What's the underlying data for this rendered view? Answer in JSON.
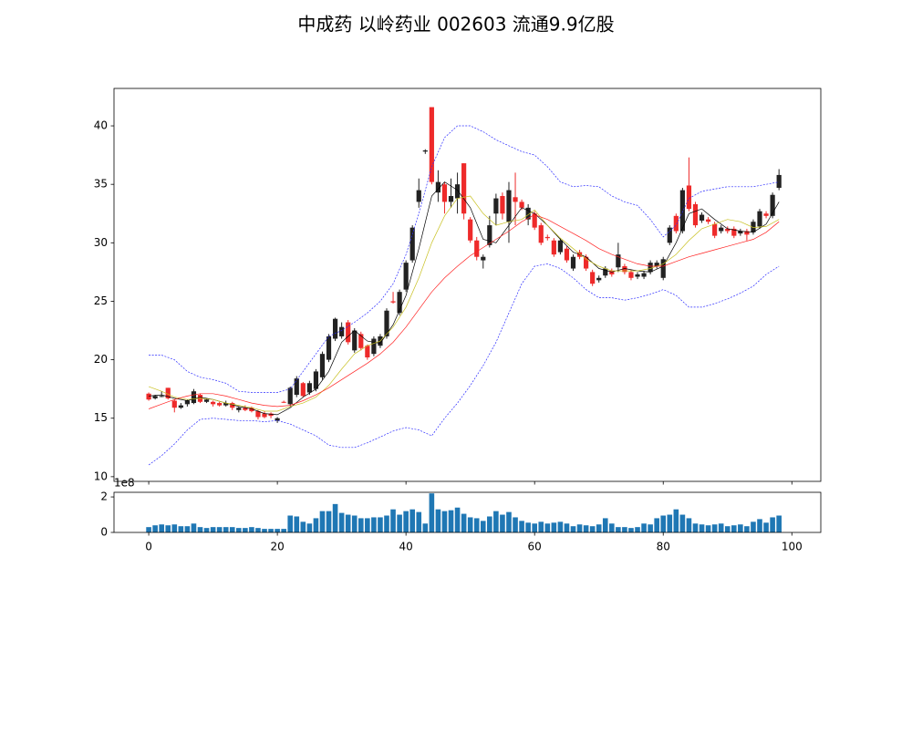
{
  "title": "中成药 以岭药业 002603 流通9.9亿股",
  "chart_data": [
    {
      "type": "candlestick",
      "up_color": "#222222",
      "down_color": "#ee2a2a",
      "open": [
        17.1,
        16.7,
        16.85,
        17.6,
        16.5,
        15.9,
        16.2,
        16.3,
        17.0,
        16.4,
        16.4,
        16.3,
        16.1,
        16.3,
        15.7,
        15.9,
        15.9,
        15.6,
        15.4,
        15.4,
        14.8,
        16.4,
        16.2,
        17.0,
        18.0,
        17.2,
        17.5,
        18.5,
        20.0,
        21.8,
        22.0,
        23.2,
        20.8,
        22.2,
        21.2,
        20.5,
        21.2,
        22.0,
        25.0,
        24.0,
        26.0,
        28.5,
        33.5,
        37.8,
        41.6,
        34.3,
        35.0,
        33.5,
        33.8,
        36.8,
        32.0,
        30.2,
        28.5,
        29.8,
        32.5,
        34.0,
        31.8,
        33.9,
        33.5,
        32.0,
        32.5,
        31.5,
        30.5,
        30.2,
        29.2,
        29.5,
        27.8,
        29.2,
        28.8,
        27.5,
        26.8,
        27.2,
        27.6,
        27.9,
        28.0,
        27.5,
        27.1,
        27.1,
        27.5,
        28.0,
        27.0,
        30.0,
        32.3,
        31.0,
        34.9,
        33.3,
        31.9,
        32.0,
        31.6,
        31.0,
        31.2,
        31.2,
        30.8,
        31.0,
        30.9,
        31.4,
        32.5,
        32.3,
        34.7
      ],
      "close": [
        16.6,
        16.9,
        16.9,
        16.7,
        15.9,
        16.1,
        16.5,
        17.3,
        16.4,
        16.6,
        16.2,
        16.1,
        16.3,
        15.9,
        15.9,
        15.7,
        15.6,
        15.1,
        15.1,
        15.2,
        15.0,
        16.35,
        17.6,
        18.4,
        16.9,
        18.0,
        19.0,
        20.5,
        22.0,
        23.5,
        22.8,
        21.5,
        22.5,
        21.0,
        20.2,
        21.8,
        22.0,
        24.2,
        24.9,
        25.8,
        28.3,
        31.3,
        34.5,
        37.9,
        35.2,
        35.2,
        33.5,
        34.0,
        35.0,
        32.5,
        30.2,
        28.8,
        28.8,
        31.5,
        33.8,
        32.5,
        34.5,
        33.5,
        33.0,
        33.0,
        31.3,
        30.0,
        30.4,
        29.0,
        30.2,
        28.5,
        28.8,
        28.8,
        27.8,
        26.5,
        27.0,
        27.8,
        27.3,
        29.0,
        27.5,
        27.0,
        27.3,
        27.4,
        28.3,
        28.3,
        28.6,
        31.3,
        31.0,
        34.5,
        32.9,
        31.5,
        32.4,
        31.8,
        30.6,
        31.3,
        31.0,
        30.6,
        31.0,
        30.7,
        31.8,
        32.7,
        32.3,
        34.1,
        35.8
      ],
      "high": [
        17.2,
        17.0,
        17.3,
        17.6,
        16.6,
        16.3,
        16.6,
        17.5,
        17.1,
        16.7,
        16.5,
        16.4,
        16.5,
        16.4,
        16.0,
        16.1,
        16.0,
        15.7,
        15.6,
        15.5,
        15.1,
        16.5,
        17.7,
        18.6,
        18.1,
        18.2,
        19.2,
        20.7,
        22.2,
        23.6,
        23.2,
        23.4,
        22.7,
        22.4,
        21.3,
        22.0,
        22.2,
        24.4,
        25.8,
        26.0,
        28.5,
        31.5,
        35.5,
        38.0,
        41.6,
        36.2,
        35.2,
        35.5,
        36.0,
        36.8,
        32.2,
        30.5,
        29.0,
        32.3,
        34.2,
        34.3,
        35.2,
        36.0,
        33.7,
        33.3,
        32.7,
        31.7,
        30.7,
        30.4,
        30.4,
        29.7,
        29.0,
        29.4,
        29.0,
        27.7,
        27.2,
        28.0,
        27.8,
        30.0,
        28.2,
        27.7,
        27.5,
        27.6,
        28.5,
        28.5,
        28.8,
        31.5,
        32.5,
        34.7,
        37.3,
        33.5,
        32.6,
        32.2,
        31.8,
        31.5,
        31.4,
        31.4,
        31.2,
        31.2,
        32.0,
        32.9,
        32.7,
        34.3,
        36.3
      ],
      "low": [
        16.5,
        16.6,
        16.8,
        16.6,
        15.5,
        15.8,
        16.0,
        16.2,
        16.3,
        16.3,
        16.0,
        16.0,
        16.0,
        15.7,
        15.5,
        15.6,
        15.5,
        14.9,
        15.0,
        15.0,
        14.6,
        16.3,
        16.0,
        16.8,
        16.8,
        17.0,
        17.3,
        18.3,
        19.8,
        21.6,
        21.8,
        21.3,
        20.6,
        20.8,
        20.0,
        20.3,
        21.0,
        21.8,
        24.8,
        23.8,
        25.8,
        28.3,
        33.0,
        37.6,
        35.0,
        33.5,
        32.5,
        33.0,
        32.5,
        32.0,
        30.0,
        28.5,
        27.8,
        29.6,
        31.5,
        32.0,
        30.0,
        31.5,
        32.8,
        31.5,
        31.1,
        29.8,
        30.2,
        28.8,
        29.0,
        28.3,
        27.6,
        28.6,
        27.6,
        26.3,
        26.6,
        27.0,
        27.1,
        27.5,
        27.3,
        26.8,
        26.9,
        26.9,
        27.3,
        27.8,
        26.8,
        29.8,
        30.8,
        30.8,
        32.7,
        31.3,
        31.7,
        31.6,
        30.4,
        30.8,
        30.8,
        30.4,
        30.6,
        30.2,
        30.7,
        31.2,
        32.1,
        32.1,
        34.5
      ],
      "lines": {
        "x": [
          0,
          2,
          4,
          6,
          8,
          10,
          12,
          14,
          16,
          18,
          20,
          22,
          24,
          26,
          28,
          30,
          32,
          34,
          36,
          38,
          40,
          42,
          44,
          46,
          48,
          50,
          52,
          54,
          56,
          58,
          60,
          62,
          64,
          66,
          68,
          70,
          72,
          74,
          76,
          78,
          80,
          82,
          84,
          86,
          88,
          90,
          92,
          94,
          96,
          98
        ],
        "series": [
          {
            "color": "#000000",
            "dashed": false,
            "values": [
              16.9,
              17.0,
              16.7,
              16.5,
              16.8,
              16.6,
              16.3,
              16.0,
              15.8,
              15.4,
              15.3,
              15.9,
              16.8,
              17.5,
              19.0,
              21.5,
              22.5,
              21.6,
              21.4,
              23.0,
              25.5,
              29.5,
              34.0,
              35.2,
              34.5,
              33.0,
              30.3,
              30.0,
              31.5,
              33.0,
              32.5,
              31.5,
              30.3,
              29.2,
              28.8,
              27.8,
              27.5,
              27.8,
              27.6,
              27.5,
              28.0,
              30.0,
              32.5,
              32.9,
              32.0,
              31.2,
              31.0,
              30.9,
              31.6,
              33.5
            ]
          },
          {
            "color": "#c8c020",
            "dashed": false,
            "values": [
              17.7,
              17.3,
              16.8,
              16.6,
              16.7,
              16.6,
              16.3,
              16.1,
              15.9,
              15.6,
              15.6,
              16.0,
              16.3,
              16.8,
              17.8,
              19.2,
              20.5,
              21.2,
              21.6,
              22.8,
              24.5,
              27.0,
              30.0,
              32.3,
              33.8,
              34.0,
              32.5,
              31.5,
              31.8,
              32.0,
              32.8,
              31.5,
              30.4,
              29.5,
              28.6,
              28.0,
              27.6,
              27.6,
              27.6,
              27.8,
              28.2,
              29.0,
              30.2,
              31.2,
              31.6,
              32.0,
              31.8,
              31.3,
              31.4,
              32.0
            ]
          },
          {
            "color": "#ff2020",
            "dashed": false,
            "values": [
              15.8,
              16.2,
              16.6,
              16.9,
              17.1,
              17.1,
              16.9,
              16.6,
              16.3,
              16.1,
              16.0,
              16.1,
              16.5,
              17.0,
              17.6,
              18.3,
              19.0,
              19.7,
              20.5,
              21.5,
              22.8,
              24.3,
              25.8,
              27.0,
              28.0,
              28.9,
              29.6,
              30.3,
              31.0,
              31.8,
              32.4,
              32.0,
              31.4,
              30.8,
              30.2,
              29.5,
              29.0,
              28.6,
              28.2,
              28.0,
              28.0,
              28.4,
              28.8,
              29.1,
              29.4,
              29.7,
              30.0,
              30.3,
              30.9,
              31.8
            ]
          },
          {
            "color": "#2a2aff",
            "dashed": true,
            "values": [
              20.4,
              20.4,
              20.0,
              19.0,
              18.5,
              18.3,
              18.0,
              17.3,
              17.2,
              17.2,
              17.2,
              17.5,
              19.0,
              20.5,
              22.0,
              22.5,
              23.2,
              24.0,
              25.0,
              26.5,
              29.0,
              32.5,
              36.5,
              39.0,
              40.0,
              40.0,
              39.5,
              38.8,
              38.3,
              37.8,
              37.5,
              36.5,
              35.2,
              34.8,
              34.9,
              34.8,
              34.0,
              33.5,
              33.2,
              32.0,
              30.5,
              31.5,
              33.8,
              34.4,
              34.6,
              34.8,
              34.8,
              34.8,
              35.0,
              35.2
            ]
          },
          {
            "color": "#2a2aff",
            "dashed": true,
            "values": [
              11.0,
              11.8,
              12.8,
              14.0,
              14.9,
              15.0,
              14.9,
              14.8,
              14.8,
              14.7,
              14.8,
              14.5,
              14.0,
              13.5,
              12.7,
              12.5,
              12.5,
              12.9,
              13.4,
              13.9,
              14.2,
              14.0,
              13.5,
              15.0,
              16.3,
              17.8,
              19.5,
              21.5,
              24.0,
              26.5,
              28.0,
              28.2,
              27.8,
              27.0,
              26.0,
              25.3,
              25.3,
              25.1,
              25.3,
              25.6,
              26.0,
              25.5,
              24.5,
              24.5,
              24.8,
              25.2,
              25.7,
              26.3,
              27.3,
              28.0
            ]
          }
        ]
      },
      "xlim": [
        -5.4,
        104.5
      ],
      "xticks": [
        0,
        20,
        40,
        60,
        80,
        100
      ],
      "ylim": [
        9.6,
        43.2
      ],
      "yticks": [
        10,
        15,
        20,
        25,
        30,
        35,
        40
      ]
    },
    {
      "type": "bar",
      "color": "#1f77b4",
      "offset_label": "1e8",
      "values": [
        0.3,
        0.4,
        0.45,
        0.4,
        0.45,
        0.35,
        0.35,
        0.5,
        0.3,
        0.25,
        0.3,
        0.3,
        0.3,
        0.3,
        0.25,
        0.25,
        0.3,
        0.25,
        0.2,
        0.2,
        0.2,
        0.2,
        0.95,
        0.9,
        0.6,
        0.5,
        0.8,
        1.2,
        1.2,
        1.6,
        1.1,
        1.0,
        0.95,
        0.8,
        0.8,
        0.85,
        0.85,
        0.95,
        1.3,
        1.0,
        1.2,
        1.3,
        1.15,
        0.5,
        2.2,
        1.3,
        1.2,
        1.25,
        1.4,
        1.05,
        0.85,
        0.8,
        0.65,
        0.9,
        1.2,
        1.0,
        1.15,
        0.85,
        0.65,
        0.55,
        0.5,
        0.6,
        0.5,
        0.55,
        0.6,
        0.5,
        0.35,
        0.45,
        0.4,
        0.35,
        0.45,
        0.8,
        0.5,
        0.3,
        0.3,
        0.25,
        0.3,
        0.5,
        0.45,
        0.8,
        0.95,
        1.0,
        1.3,
        1.0,
        0.8,
        0.5,
        0.45,
        0.4,
        0.45,
        0.5,
        0.35,
        0.4,
        0.45,
        0.35,
        0.6,
        0.75,
        0.55,
        0.85,
        0.95
      ],
      "xlim": [
        -5.4,
        104.5
      ],
      "xticks": [
        0,
        20,
        40,
        60,
        80,
        100
      ],
      "ylim": [
        0,
        2.26
      ],
      "yticks": [
        0,
        2
      ]
    }
  ]
}
